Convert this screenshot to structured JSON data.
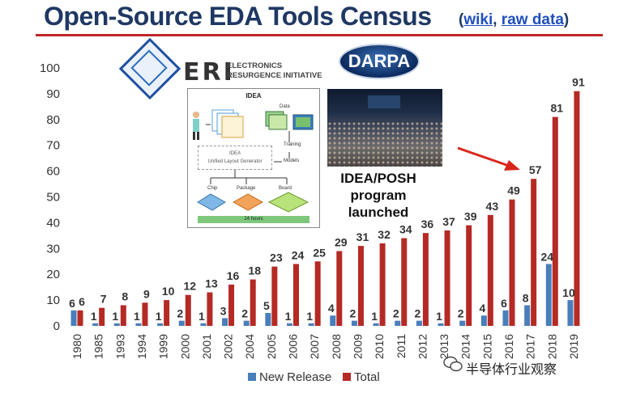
{
  "header": {
    "title": "Open-Source EDA Tools Census",
    "links_open": "(",
    "link_wiki": "wiki",
    "links_sep": ", ",
    "link_raw": "raw data",
    "links_close": ")"
  },
  "logos": {
    "eri_letters": "ERI",
    "eri_line1": "ELECTRONICS",
    "eri_line2": "RESURGENCE INITIATIVE",
    "darpa": "DARPA"
  },
  "idea_diagram": {
    "title": "IDEA",
    "data": "Data",
    "generator_line1": "IDEA",
    "generator_line2": "Unified Layout Generator",
    "training": "Training",
    "models": "Models",
    "chip": "Chip",
    "package": "Package",
    "board": "Board",
    "hours": "24 hours"
  },
  "annotation": {
    "line1": "IDEA/POSH",
    "line2": "program",
    "line3": "launched"
  },
  "watermark": "半导体行业观察",
  "colors": {
    "new_release": "#4a7ebb",
    "total": "#b52a24",
    "arrow": "#d9261c",
    "title": "#1f3864"
  },
  "chart_data": {
    "type": "bar",
    "categories": [
      "1980",
      "1985",
      "1993",
      "1994",
      "1999",
      "2000",
      "2001",
      "2002",
      "2004",
      "2005",
      "2006",
      "2007",
      "2008",
      "2009",
      "2010",
      "2011",
      "2012",
      "2013",
      "2014",
      "2015",
      "2016",
      "2017",
      "2018",
      "2019"
    ],
    "series": [
      {
        "name": "New Release",
        "values": [
          6,
          1,
          1,
          1,
          1,
          2,
          1,
          3,
          2,
          5,
          1,
          1,
          4,
          2,
          1,
          2,
          2,
          1,
          2,
          4,
          6,
          8,
          24,
          10
        ]
      },
      {
        "name": "Total",
        "values": [
          6,
          7,
          8,
          9,
          10,
          12,
          13,
          16,
          18,
          23,
          24,
          25,
          29,
          31,
          32,
          34,
          36,
          37,
          39,
          43,
          49,
          57,
          81,
          91
        ]
      }
    ],
    "ylim": [
      0,
      100
    ],
    "yticks": [
      0,
      10,
      20,
      30,
      40,
      50,
      60,
      70,
      80,
      90,
      100
    ],
    "grid": false,
    "legend": "bottom-center"
  }
}
